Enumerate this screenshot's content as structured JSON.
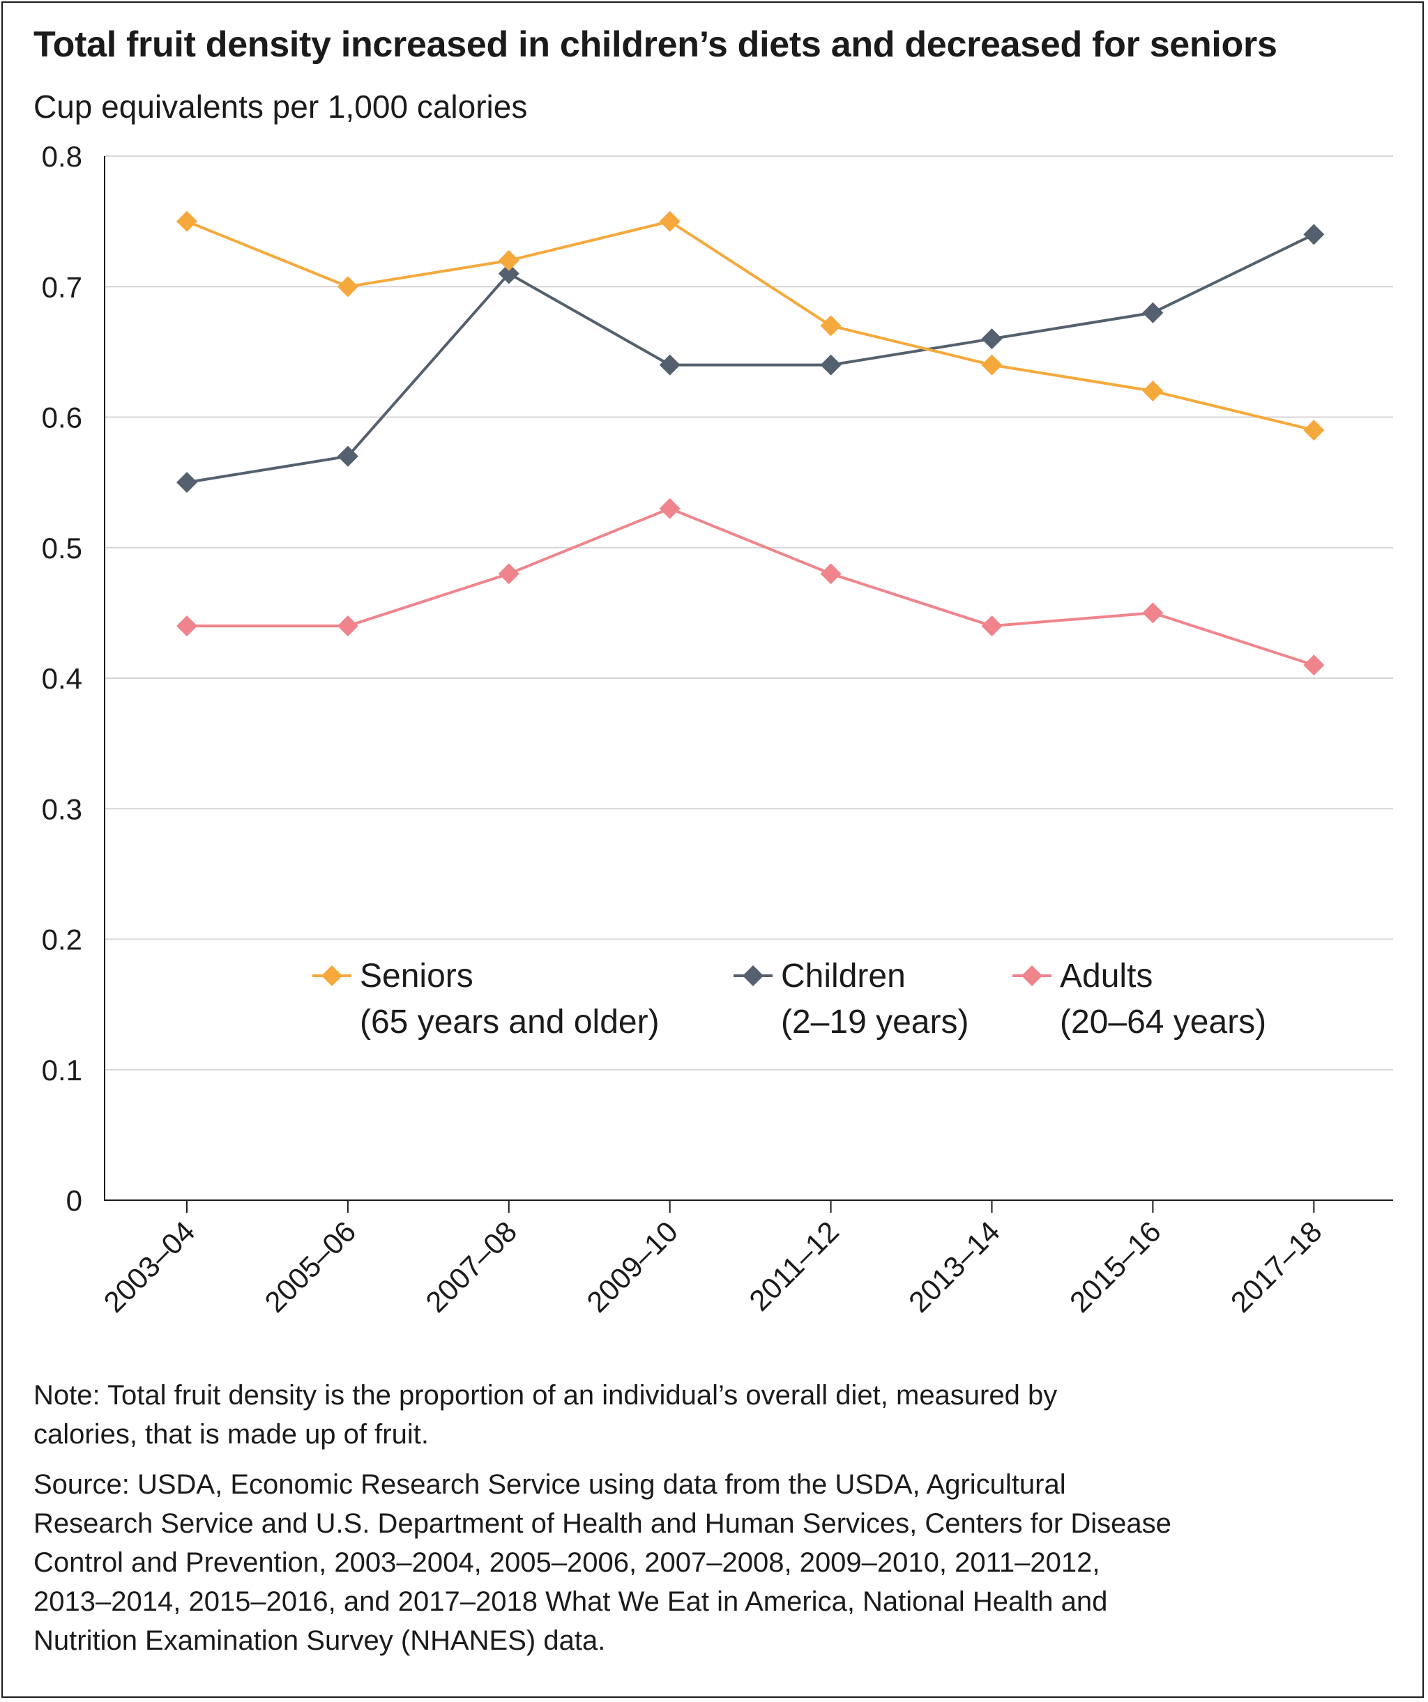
{
  "header": {
    "title": "Total fruit density increased in children’s diets and decreased for seniors",
    "subtitle": "Cup equivalents per 1,000 calories"
  },
  "chart_data": {
    "type": "line",
    "title": "Total fruit density increased in children’s diets and decreased for seniors",
    "ylabel": "Cup equivalents per 1,000 calories",
    "xlabel": "",
    "ylim": [
      0,
      0.8
    ],
    "y_ticks": [
      "0",
      "0.1",
      "0.2",
      "0.3",
      "0.4",
      "0.5",
      "0.6",
      "0.7",
      "0.8"
    ],
    "y_tick_values": [
      0,
      0.1,
      0.2,
      0.3,
      0.4,
      0.5,
      0.6,
      0.7,
      0.8
    ],
    "grid": true,
    "categories": [
      "2003–04",
      "2005–06",
      "2007–08",
      "2009–10",
      "2011–12",
      "2013–14",
      "2015–16",
      "2017–18"
    ],
    "series": [
      {
        "key": "seniors",
        "name": "Seniors",
        "sub": "(65 years and older)",
        "color": "#f5a93c",
        "values": [
          0.75,
          0.7,
          0.72,
          0.75,
          0.67,
          0.64,
          0.62,
          0.59
        ]
      },
      {
        "key": "children",
        "name": "Children",
        "sub": "(2–19 years)",
        "color": "#55606f",
        "values": [
          0.55,
          0.57,
          0.71,
          0.64,
          0.64,
          0.66,
          0.68,
          0.74
        ]
      },
      {
        "key": "adults",
        "name": "Adults",
        "sub": "(20–64 years)",
        "color": "#f0848c",
        "values": [
          0.44,
          0.44,
          0.48,
          0.53,
          0.48,
          0.44,
          0.45,
          0.41
        ]
      }
    ],
    "legend_position": "center"
  },
  "footer": {
    "note_lines": [
      "Note: Total fruit density is the proportion of an individual’s overall diet, measured by",
      "calories, that is made up of fruit."
    ],
    "source_lines": [
      "Source: USDA, Economic Research Service using data from the USDA, Agricultural",
      "Research Service and U.S. Department of Health and Human Services, Centers for Disease",
      "Control and Prevention, 2003–2004, 2005–2006, 2007–2008, 2009–2010, 2011–2012,",
      "2013–2014, 2015–2016, and 2017–2018 What We Eat in America, National Health and",
      "Nutrition Examination Survey (NHANES) data."
    ]
  }
}
